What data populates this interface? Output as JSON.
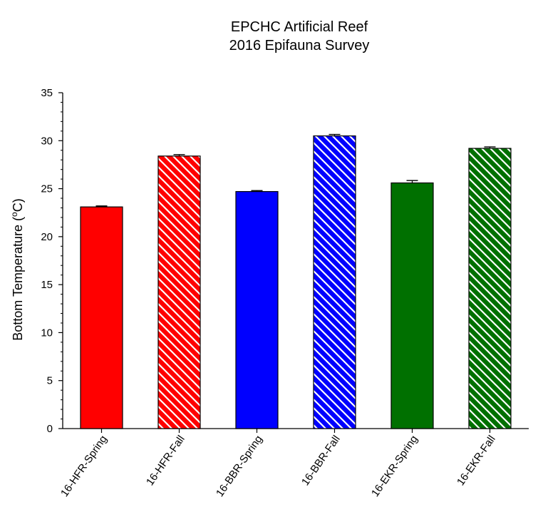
{
  "chart_data": {
    "type": "bar",
    "title": [
      "EPCHC Artificial Reef",
      "2016 Epifauna Survey"
    ],
    "ylabel": {
      "main": "Bottom Temperature (",
      "sup": "o",
      "unit": "C)"
    },
    "xlabel": "",
    "ylim": [
      0,
      35
    ],
    "yticks": [
      0,
      5,
      10,
      15,
      20,
      25,
      30,
      35
    ],
    "categories": [
      "16-HFR-Spring",
      "16-HFR-Fall",
      "16-BBR-Spring",
      "16-BBR-Fall",
      "16-EKR-Spring",
      "16-EKR-Fall"
    ],
    "values": [
      23.1,
      28.4,
      24.7,
      30.5,
      25.6,
      29.2
    ],
    "errors": [
      0.1,
      0.15,
      0.1,
      0.15,
      0.25,
      0.15
    ],
    "colors": [
      "#ff0000",
      "#ff0000",
      "#0000ff",
      "#0000ff",
      "#007000",
      "#007000"
    ],
    "hatched": [
      false,
      true,
      false,
      true,
      false,
      true
    ],
    "grid": false,
    "legend": "none"
  }
}
